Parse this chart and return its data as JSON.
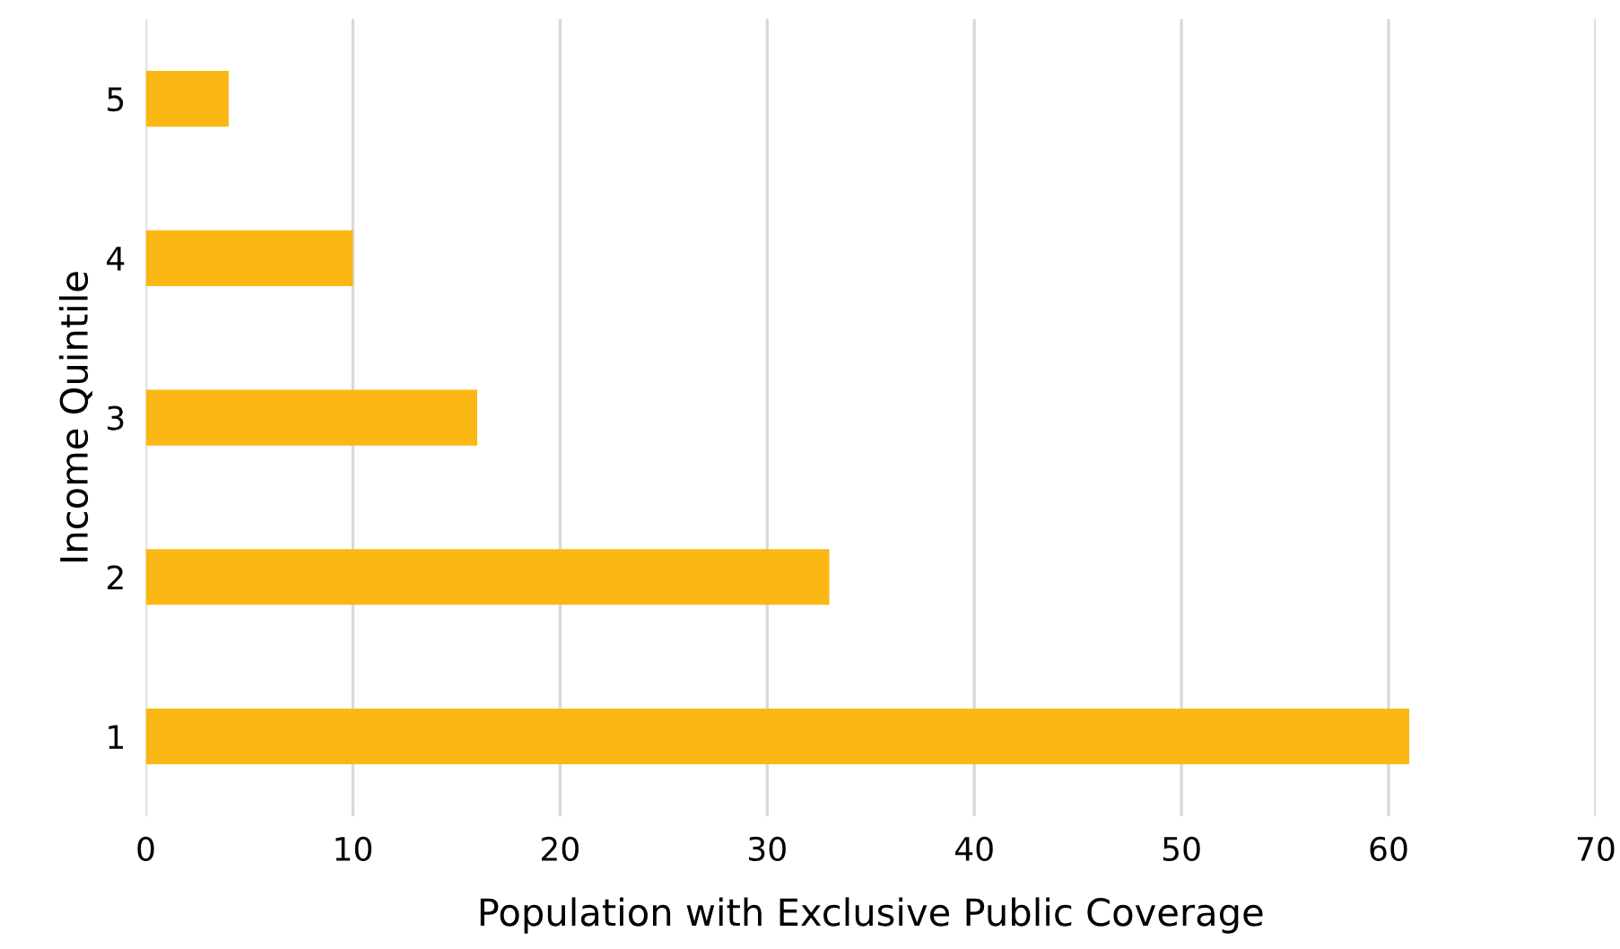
{
  "chart_data": {
    "type": "bar",
    "orientation": "horizontal",
    "xlabel": "Population with Exclusive Public Coverage",
    "ylabel": "Income Quintile",
    "categories": [
      "5",
      "4",
      "3",
      "2",
      "1"
    ],
    "values": [
      4,
      10,
      16,
      33,
      61
    ],
    "color": "#fbb714",
    "xlim": [
      0,
      70
    ],
    "xticks": [
      0,
      10,
      20,
      30,
      40,
      50,
      60,
      70
    ],
    "grid": "x",
    "legend": false
  }
}
